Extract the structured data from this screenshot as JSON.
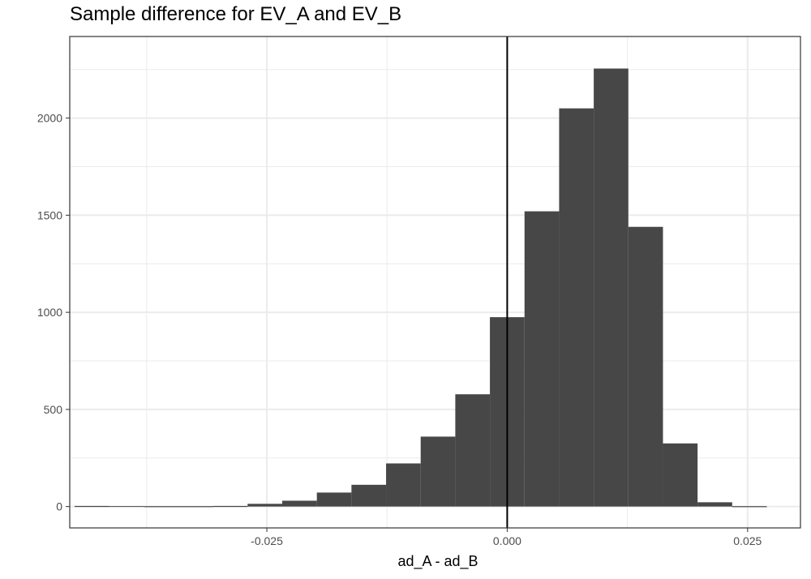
{
  "chart_data": {
    "type": "bar",
    "title": "Sample difference for EV_A and EV_B",
    "xlabel": "ad_A - ad_B",
    "ylabel": "",
    "xlim": [
      -0.0455,
      0.0305
    ],
    "ylim": [
      -110,
      2420
    ],
    "x_ticks": [
      -0.025,
      0.0,
      0.025
    ],
    "x_tick_labels": [
      "-0.025",
      "0.000",
      "0.025"
    ],
    "y_ticks": [
      0,
      500,
      1000,
      1500,
      2000
    ],
    "y_tick_labels": [
      "0",
      "500",
      "1000",
      "1500",
      "2000"
    ],
    "x_minor_ticks": [
      -0.0375,
      -0.0125,
      0.0125
    ],
    "y_minor_ticks": [
      250,
      750,
      1250,
      1750,
      2250
    ],
    "grid": true,
    "vline_x": 0.0,
    "bar_color": "#474747",
    "bins": [
      {
        "start": -0.045,
        "end": -0.0414,
        "count": 3
      },
      {
        "start": -0.0414,
        "end": -0.0378,
        "count": 0
      },
      {
        "start": -0.0378,
        "end": -0.0342,
        "count": 2
      },
      {
        "start": -0.0342,
        "end": -0.0306,
        "count": 2
      },
      {
        "start": -0.0306,
        "end": -0.027,
        "count": 3
      },
      {
        "start": -0.027,
        "end": -0.0234,
        "count": 14
      },
      {
        "start": -0.0234,
        "end": -0.0198,
        "count": 30
      },
      {
        "start": -0.0198,
        "end": -0.0162,
        "count": 72
      },
      {
        "start": -0.0162,
        "end": -0.0126,
        "count": 112
      },
      {
        "start": -0.0126,
        "end": -0.009,
        "count": 222
      },
      {
        "start": -0.009,
        "end": -0.0054,
        "count": 360
      },
      {
        "start": -0.0054,
        "end": -0.0018,
        "count": 578
      },
      {
        "start": -0.0018,
        "end": 0.0018,
        "count": 975
      },
      {
        "start": 0.0018,
        "end": 0.0054,
        "count": 1520
      },
      {
        "start": 0.0054,
        "end": 0.009,
        "count": 2050
      },
      {
        "start": 0.009,
        "end": 0.0126,
        "count": 2255
      },
      {
        "start": 0.0126,
        "end": 0.0162,
        "count": 1440
      },
      {
        "start": 0.0162,
        "end": 0.0198,
        "count": 325
      },
      {
        "start": 0.0198,
        "end": 0.0234,
        "count": 22
      },
      {
        "start": 0.0234,
        "end": 0.027,
        "count": 2
      }
    ]
  }
}
